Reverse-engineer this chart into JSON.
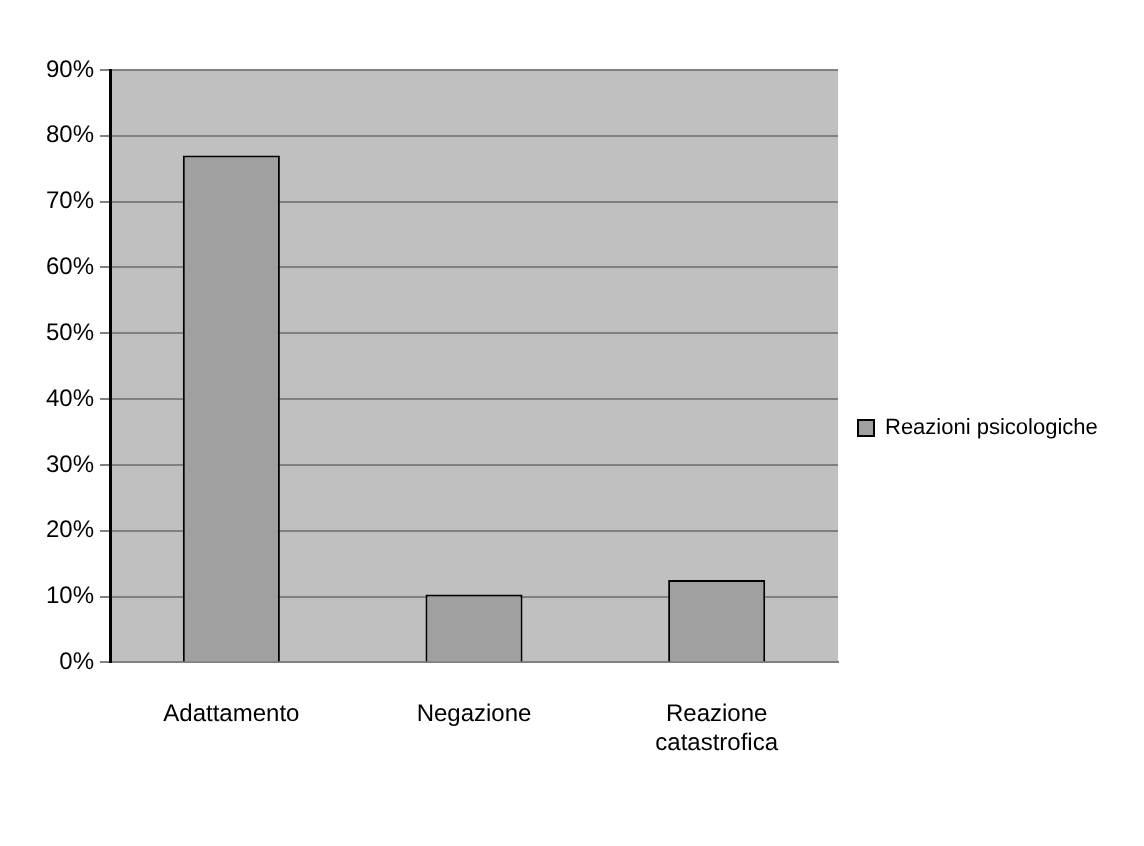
{
  "chart_data": {
    "type": "bar",
    "categories": [
      "Adattamento",
      "Negazione",
      "Reazione catastrofica"
    ],
    "series": [
      {
        "name": "Reazioni psicologiche",
        "color": "#a0a0a0",
        "values": [
          77,
          10.3,
          12.5
        ]
      }
    ],
    "ylim": [
      0,
      90
    ],
    "yticks": [
      {
        "value": 0,
        "label": "0%"
      },
      {
        "value": 10,
        "label": "10%"
      },
      {
        "value": 20,
        "label": "20%"
      },
      {
        "value": 30,
        "label": "30%"
      },
      {
        "value": 40,
        "label": "40%"
      },
      {
        "value": 50,
        "label": "50%"
      },
      {
        "value": 60,
        "label": "60%"
      },
      {
        "value": 70,
        "label": "70%"
      },
      {
        "value": 80,
        "label": "80%"
      },
      {
        "value": 90,
        "label": "90%"
      }
    ],
    "grid": "y",
    "legend": "right"
  }
}
